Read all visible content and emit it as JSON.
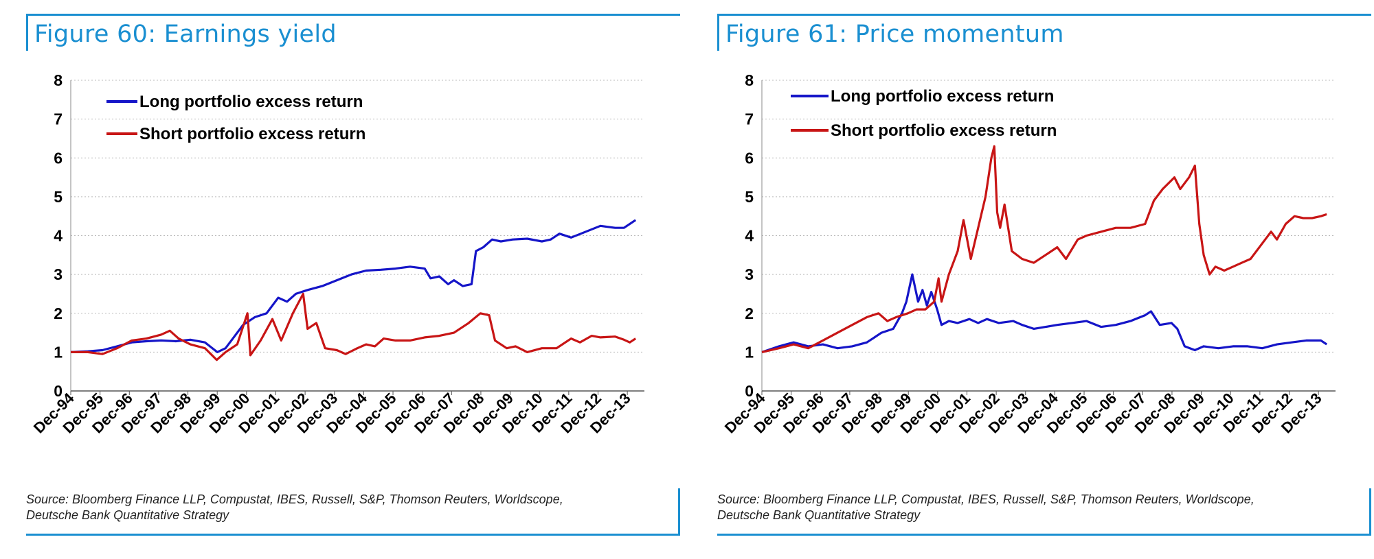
{
  "charts": [
    {
      "title": "Figure 60: Earnings yield",
      "source_line1": "Source: Bloomberg Finance LLP, Compustat, IBES, Russell, S&P, Thomson Reuters, Worldscope,",
      "source_line2": "Deutsche Bank Quantitative Strategy"
    },
    {
      "title": "Figure 61: Price momentum",
      "source_line1": "Source: Bloomberg Finance LLP, Compustat, IBES, Russell, S&P, Thomson Reuters, Worldscope,",
      "source_line2": "Deutsche Bank Quantitative Strategy"
    }
  ],
  "chart_data": [
    {
      "type": "line",
      "title": "Figure 60: Earnings yield",
      "xlabel": "",
      "ylabel": "",
      "ylim": [
        0,
        8
      ],
      "xlim": [
        1994.917,
        2014.5
      ],
      "yticks": [
        0,
        1,
        2,
        3,
        4,
        5,
        6,
        7,
        8
      ],
      "xticks": [
        "Dec-94",
        "Dec-95",
        "Dec-96",
        "Dec-97",
        "Dec-98",
        "Dec-99",
        "Dec-00",
        "Dec-01",
        "Dec-02",
        "Dec-03",
        "Dec-04",
        "Dec-05",
        "Dec-06",
        "Dec-07",
        "Dec-08",
        "Dec-09",
        "Dec-10",
        "Dec-11",
        "Dec-12",
        "Dec-13"
      ],
      "grid": "horizontal dotted",
      "legend": "top-left",
      "series": [
        {
          "name": "Long portfolio excess return",
          "color": "#1515c8",
          "points": [
            [
              1994.92,
              1.0
            ],
            [
              1995.5,
              1.02
            ],
            [
              1996.0,
              1.05
            ],
            [
              1996.5,
              1.15
            ],
            [
              1997.0,
              1.25
            ],
            [
              1997.5,
              1.28
            ],
            [
              1998.0,
              1.3
            ],
            [
              1998.5,
              1.28
            ],
            [
              1999.0,
              1.32
            ],
            [
              1999.5,
              1.25
            ],
            [
              1999.92,
              1.0
            ],
            [
              2000.2,
              1.1
            ],
            [
              2000.5,
              1.4
            ],
            [
              2000.8,
              1.7
            ],
            [
              2001.2,
              1.9
            ],
            [
              2001.6,
              2.0
            ],
            [
              2002.0,
              2.4
            ],
            [
              2002.3,
              2.3
            ],
            [
              2002.6,
              2.5
            ],
            [
              2003.0,
              2.6
            ],
            [
              2003.5,
              2.7
            ],
            [
              2004.0,
              2.85
            ],
            [
              2004.5,
              3.0
            ],
            [
              2005.0,
              3.1
            ],
            [
              2005.5,
              3.12
            ],
            [
              2006.0,
              3.15
            ],
            [
              2006.5,
              3.2
            ],
            [
              2007.0,
              3.15
            ],
            [
              2007.2,
              2.9
            ],
            [
              2007.5,
              2.95
            ],
            [
              2007.8,
              2.75
            ],
            [
              2008.0,
              2.85
            ],
            [
              2008.3,
              2.7
            ],
            [
              2008.6,
              2.75
            ],
            [
              2008.75,
              3.6
            ],
            [
              2009.0,
              3.7
            ],
            [
              2009.3,
              3.9
            ],
            [
              2009.6,
              3.85
            ],
            [
              2010.0,
              3.9
            ],
            [
              2010.5,
              3.92
            ],
            [
              2011.0,
              3.85
            ],
            [
              2011.3,
              3.9
            ],
            [
              2011.6,
              4.05
            ],
            [
              2012.0,
              3.95
            ],
            [
              2012.5,
              4.1
            ],
            [
              2013.0,
              4.25
            ],
            [
              2013.5,
              4.2
            ],
            [
              2013.8,
              4.2
            ],
            [
              2014.2,
              4.4
            ]
          ]
        },
        {
          "name": "Short portfolio excess return",
          "color": "#c81515",
          "points": [
            [
              1994.92,
              1.0
            ],
            [
              1995.5,
              1.0
            ],
            [
              1996.0,
              0.95
            ],
            [
              1996.5,
              1.1
            ],
            [
              1997.0,
              1.3
            ],
            [
              1997.5,
              1.35
            ],
            [
              1998.0,
              1.45
            ],
            [
              1998.3,
              1.55
            ],
            [
              1998.6,
              1.35
            ],
            [
              1999.0,
              1.2
            ],
            [
              1999.5,
              1.1
            ],
            [
              1999.9,
              0.8
            ],
            [
              2000.2,
              1.0
            ],
            [
              2000.6,
              1.2
            ],
            [
              2000.95,
              2.0
            ],
            [
              2001.05,
              0.92
            ],
            [
              2001.4,
              1.3
            ],
            [
              2001.8,
              1.85
            ],
            [
              2002.1,
              1.3
            ],
            [
              2002.5,
              2.0
            ],
            [
              2002.85,
              2.5
            ],
            [
              2003.0,
              1.6
            ],
            [
              2003.3,
              1.75
            ],
            [
              2003.6,
              1.1
            ],
            [
              2004.0,
              1.05
            ],
            [
              2004.3,
              0.95
            ],
            [
              2004.7,
              1.1
            ],
            [
              2005.0,
              1.2
            ],
            [
              2005.3,
              1.15
            ],
            [
              2005.6,
              1.35
            ],
            [
              2006.0,
              1.3
            ],
            [
              2006.5,
              1.3
            ],
            [
              2007.0,
              1.38
            ],
            [
              2007.5,
              1.42
            ],
            [
              2008.0,
              1.5
            ],
            [
              2008.5,
              1.75
            ],
            [
              2008.9,
              2.0
            ],
            [
              2009.2,
              1.95
            ],
            [
              2009.4,
              1.3
            ],
            [
              2009.8,
              1.1
            ],
            [
              2010.1,
              1.15
            ],
            [
              2010.5,
              1.0
            ],
            [
              2011.0,
              1.1
            ],
            [
              2011.5,
              1.1
            ],
            [
              2012.0,
              1.35
            ],
            [
              2012.3,
              1.25
            ],
            [
              2012.7,
              1.42
            ],
            [
              2013.0,
              1.38
            ],
            [
              2013.5,
              1.4
            ],
            [
              2013.8,
              1.32
            ],
            [
              2014.0,
              1.25
            ],
            [
              2014.2,
              1.35
            ]
          ]
        }
      ]
    },
    {
      "type": "line",
      "title": "Figure 61: Price momentum",
      "xlabel": "",
      "ylabel": "",
      "ylim": [
        0,
        8
      ],
      "xlim": [
        1994.917,
        2014.5
      ],
      "yticks": [
        0,
        1,
        2,
        3,
        4,
        5,
        6,
        7,
        8
      ],
      "xticks": [
        "Dec-94",
        "Dec-95",
        "Dec-96",
        "Dec-97",
        "Dec-98",
        "Dec-99",
        "Dec-00",
        "Dec-01",
        "Dec-02",
        "Dec-03",
        "Dec-04",
        "Dec-05",
        "Dec-06",
        "Dec-07",
        "Dec-08",
        "Dec-09",
        "Dec-10",
        "Dec-11",
        "Dec-12",
        "Dec-13"
      ],
      "grid": "horizontal dotted",
      "legend": "top-left",
      "series": [
        {
          "name": "Long portfolio excess return",
          "color": "#1515c8",
          "points": [
            [
              1994.92,
              1.0
            ],
            [
              1995.5,
              1.15
            ],
            [
              1996.0,
              1.25
            ],
            [
              1996.5,
              1.15
            ],
            [
              1997.0,
              1.2
            ],
            [
              1997.5,
              1.1
            ],
            [
              1998.0,
              1.15
            ],
            [
              1998.5,
              1.25
            ],
            [
              1999.0,
              1.5
            ],
            [
              1999.4,
              1.6
            ],
            [
              1999.7,
              2.0
            ],
            [
              1999.85,
              2.3
            ],
            [
              2000.05,
              3.0
            ],
            [
              2000.25,
              2.3
            ],
            [
              2000.4,
              2.6
            ],
            [
              2000.55,
              2.2
            ],
            [
              2000.7,
              2.55
            ],
            [
              2000.9,
              2.1
            ],
            [
              2001.05,
              1.7
            ],
            [
              2001.3,
              1.8
            ],
            [
              2001.6,
              1.75
            ],
            [
              2002.0,
              1.85
            ],
            [
              2002.3,
              1.75
            ],
            [
              2002.6,
              1.85
            ],
            [
              2003.0,
              1.75
            ],
            [
              2003.5,
              1.8
            ],
            [
              2003.8,
              1.7
            ],
            [
              2004.2,
              1.6
            ],
            [
              2004.6,
              1.65
            ],
            [
              2005.0,
              1.7
            ],
            [
              2005.5,
              1.75
            ],
            [
              2006.0,
              1.8
            ],
            [
              2006.5,
              1.65
            ],
            [
              2007.0,
              1.7
            ],
            [
              2007.5,
              1.8
            ],
            [
              2008.0,
              1.95
            ],
            [
              2008.2,
              2.05
            ],
            [
              2008.5,
              1.7
            ],
            [
              2008.9,
              1.75
            ],
            [
              2009.1,
              1.6
            ],
            [
              2009.35,
              1.15
            ],
            [
              2009.7,
              1.05
            ],
            [
              2010.0,
              1.15
            ],
            [
              2010.5,
              1.1
            ],
            [
              2011.0,
              1.15
            ],
            [
              2011.5,
              1.15
            ],
            [
              2012.0,
              1.1
            ],
            [
              2012.5,
              1.2
            ],
            [
              2013.0,
              1.25
            ],
            [
              2013.5,
              1.3
            ],
            [
              2014.0,
              1.3
            ],
            [
              2014.2,
              1.2
            ]
          ]
        },
        {
          "name": "Short portfolio excess return",
          "color": "#c81515",
          "points": [
            [
              1994.92,
              1.0
            ],
            [
              1995.5,
              1.1
            ],
            [
              1996.0,
              1.2
            ],
            [
              1996.5,
              1.1
            ],
            [
              1997.0,
              1.3
            ],
            [
              1997.5,
              1.5
            ],
            [
              1998.0,
              1.7
            ],
            [
              1998.5,
              1.9
            ],
            [
              1998.9,
              2.0
            ],
            [
              1999.2,
              1.8
            ],
            [
              1999.5,
              1.9
            ],
            [
              1999.9,
              2.0
            ],
            [
              2000.2,
              2.1
            ],
            [
              2000.5,
              2.1
            ],
            [
              2000.8,
              2.3
            ],
            [
              2000.95,
              2.9
            ],
            [
              2001.05,
              2.3
            ],
            [
              2001.3,
              3.0
            ],
            [
              2001.6,
              3.6
            ],
            [
              2001.8,
              4.4
            ],
            [
              2002.05,
              3.4
            ],
            [
              2002.3,
              4.2
            ],
            [
              2002.55,
              5.0
            ],
            [
              2002.75,
              6.0
            ],
            [
              2002.85,
              6.3
            ],
            [
              2002.95,
              4.6
            ],
            [
              2003.05,
              4.2
            ],
            [
              2003.2,
              4.8
            ],
            [
              2003.45,
              3.6
            ],
            [
              2003.8,
              3.4
            ],
            [
              2004.2,
              3.3
            ],
            [
              2004.6,
              3.5
            ],
            [
              2005.0,
              3.7
            ],
            [
              2005.3,
              3.4
            ],
            [
              2005.7,
              3.9
            ],
            [
              2006.0,
              4.0
            ],
            [
              2006.5,
              4.1
            ],
            [
              2007.0,
              4.2
            ],
            [
              2007.5,
              4.2
            ],
            [
              2008.0,
              4.3
            ],
            [
              2008.3,
              4.9
            ],
            [
              2008.6,
              5.2
            ],
            [
              2009.0,
              5.5
            ],
            [
              2009.2,
              5.2
            ],
            [
              2009.5,
              5.5
            ],
            [
              2009.7,
              5.8
            ],
            [
              2009.85,
              4.3
            ],
            [
              2010.0,
              3.5
            ],
            [
              2010.2,
              3.0
            ],
            [
              2010.4,
              3.2
            ],
            [
              2010.7,
              3.1
            ],
            [
              2011.0,
              3.2
            ],
            [
              2011.3,
              3.3
            ],
            [
              2011.6,
              3.4
            ],
            [
              2012.0,
              3.8
            ],
            [
              2012.3,
              4.1
            ],
            [
              2012.5,
              3.9
            ],
            [
              2012.8,
              4.3
            ],
            [
              2013.1,
              4.5
            ],
            [
              2013.4,
              4.45
            ],
            [
              2013.7,
              4.45
            ],
            [
              2014.0,
              4.5
            ],
            [
              2014.2,
              4.55
            ]
          ]
        }
      ]
    }
  ]
}
